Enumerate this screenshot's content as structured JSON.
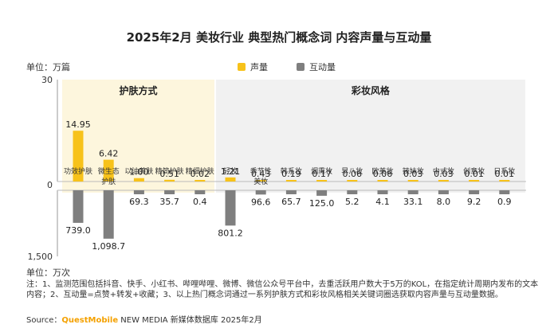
{
  "title": "2025年2月 美妆行业 典型热门概念词 内容声量与互动量",
  "unit_top": "单位：万篇",
  "unit_bottom": "单位：万次",
  "legend": [
    {
      "label": "声量",
      "color": "#f7c21a"
    },
    {
      "label": "互动量",
      "color": "#7f7f7f"
    }
  ],
  "group_labels": [
    "护肤方式",
    "彩妆风格"
  ],
  "notes": "注：1、监测范围包括抖音、快手、小红书、哔哩哔哩、微博、微信公众号平台中，去重活跃用户数大于5万的KOL，在指定统计周期内发布的文本内容；2、互动量=点赞+转发+收藏；3、以上热门概念词通过一系列护肤方式和彩妆风格相关关键词圈选获取内容声量与互动量数据。",
  "source": {
    "prefix": "Source：",
    "brand": "QuestMobile",
    "suffix": " NEW MEDIA  新媒体数据库 2025年2月"
  },
  "chart_data": {
    "type": "bar",
    "categories": [
      "功效护肤",
      "微生态护肤",
      "以油养肤",
      "精简护肤",
      "精细护肤",
      "轻妆",
      "季节性美妆",
      "韩系妆",
      "烟熏妆",
      "早八妆",
      "欧美妆",
      "辣妹妆",
      "中式妆",
      "创意妆",
      "日系妆"
    ],
    "groups": [
      {
        "name": "护肤方式",
        "categories": [
          "功效护肤",
          "微生态护肤",
          "以油养肤",
          "精简护肤",
          "精细护肤"
        ]
      },
      {
        "name": "彩妆风格",
        "categories": [
          "轻妆",
          "季节性美妆",
          "韩系妆",
          "烟熏妆",
          "早八妆",
          "欧美妆",
          "辣妹妆",
          "中式妆",
          "创意妆",
          "日系妆"
        ]
      }
    ],
    "series": [
      {
        "name": "声量",
        "values": [
          14.95,
          6.42,
          1.0,
          0.51,
          0.02,
          1.21,
          0.43,
          0.19,
          0.17,
          0.06,
          0.06,
          0.03,
          0.03,
          0.01,
          0.01
        ],
        "labels": [
          "14.95",
          "6.42",
          "1.00",
          "0.51",
          "0.02",
          "1.21",
          "0.43",
          "0.19",
          "0.17",
          "0.06",
          "0.06",
          "0.03",
          "0.03",
          "0.01",
          "0.01"
        ]
      },
      {
        "name": "互动量",
        "values": [
          739.0,
          1098.7,
          69.3,
          35.7,
          0.4,
          801.2,
          96.6,
          65.7,
          125.0,
          5.2,
          4.1,
          33.1,
          8.0,
          9.2,
          0.9
        ],
        "labels": [
          "739.0",
          "1,098.7",
          "69.3",
          "35.7",
          "0.4",
          "801.2",
          "96.6",
          "65.7",
          "125.0",
          "5.2",
          "4.1",
          "33.1",
          "8.0",
          "9.2",
          "0.9"
        ]
      }
    ],
    "axes": {
      "top": {
        "ylim": [
          0,
          30
        ],
        "tick_labels": [
          "0",
          "30"
        ]
      },
      "bottom": {
        "ylim": [
          0,
          1500
        ],
        "tick_labels": [
          "0",
          "1,500"
        ]
      }
    }
  }
}
